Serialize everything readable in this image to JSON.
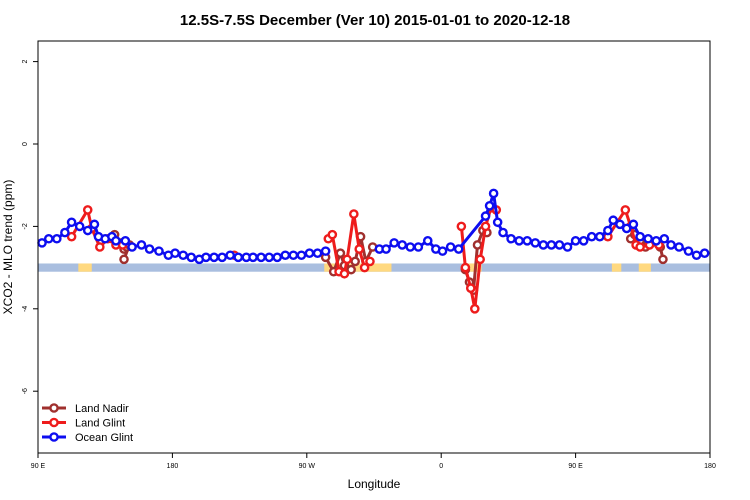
{
  "chart_data": {
    "type": "line",
    "title": "12.5S-7.5S December (Ver 10)   2015-01-01 to 2020-12-18",
    "xlabel": "Longitude",
    "ylabel": "XCO2 - MLO trend (ppm)",
    "xlim": [
      0,
      500
    ],
    "ylim": [
      -7.5,
      2.5
    ],
    "x_ticks": [
      {
        "value": 0,
        "label": "90 E"
      },
      {
        "value": 100,
        "label": "180"
      },
      {
        "value": 200,
        "label": "90 W"
      },
      {
        "value": 300,
        "label": "0"
      },
      {
        "value": 400,
        "label": "90 E"
      },
      {
        "value": 500,
        "label": "180"
      }
    ],
    "y_ticks": [
      {
        "value": 2,
        "label": "2"
      },
      {
        "value": 0,
        "label": "0"
      },
      {
        "value": -2,
        "label": "-2"
      },
      {
        "value": -4,
        "label": "-4"
      },
      {
        "value": -6,
        "label": "-6"
      }
    ],
    "grid": false,
    "legend_position": "bottom-left",
    "land_band": {
      "y_range": [
        -3.1,
        -2.9
      ],
      "color": "#a9bedf",
      "land_color": "#ffd980",
      "land_x": [
        [
          30,
          40
        ],
        [
          213,
          263
        ],
        [
          318,
          330
        ],
        [
          427,
          434
        ],
        [
          447,
          456
        ]
      ]
    },
    "series": [
      {
        "name": "Land Nadir",
        "color": "#a0302e",
        "points": [
          [
            55,
            -2.3
          ],
          [
            57,
            -2.2
          ],
          [
            62,
            -2.4
          ],
          [
            64,
            -2.55
          ],
          [
            66,
            -2.5
          ],
          [
            68,
            -2.45
          ],
          [
            64,
            -2.8
          ],
          [
            214,
            -2.75
          ],
          [
            220,
            -3.1
          ],
          [
            225,
            -2.65
          ],
          [
            228,
            -2.95
          ],
          [
            233,
            -3.05
          ],
          [
            236,
            -2.85
          ],
          [
            240,
            -2.25
          ],
          [
            244,
            -2.85
          ],
          [
            249,
            -2.5
          ],
          [
            318,
            -3.05
          ],
          [
            321,
            -3.35
          ],
          [
            324,
            -3.55
          ],
          [
            327,
            -2.45
          ],
          [
            331,
            -2.1
          ],
          [
            334,
            -2.15
          ],
          [
            441,
            -2.3
          ],
          [
            444,
            -2.2
          ],
          [
            448,
            -2.35
          ],
          [
            452,
            -2.5
          ],
          [
            454,
            -2.4
          ],
          [
            463,
            -2.5
          ],
          [
            465,
            -2.8
          ]
        ]
      },
      {
        "name": "Land Glint",
        "color": "#ee1c1c",
        "points": [
          [
            25,
            -2.25
          ],
          [
            37,
            -1.6
          ],
          [
            40,
            -2.05
          ],
          [
            46,
            -2.5
          ],
          [
            52,
            -2.3
          ],
          [
            58,
            -2.45
          ],
          [
            63,
            -2.45
          ],
          [
            146,
            -2.7
          ],
          [
            216,
            -2.3
          ],
          [
            219,
            -2.2
          ],
          [
            224,
            -3.1
          ],
          [
            228,
            -3.15
          ],
          [
            230,
            -2.8
          ],
          [
            235,
            -1.7
          ],
          [
            239,
            -2.55
          ],
          [
            243,
            -3.0
          ],
          [
            247,
            -2.85
          ],
          [
            315,
            -2.0
          ],
          [
            318,
            -3.0
          ],
          [
            322,
            -3.5
          ],
          [
            325,
            -4.0
          ],
          [
            329,
            -2.8
          ],
          [
            333,
            -2.0
          ],
          [
            337,
            -1.55
          ],
          [
            341,
            -1.6
          ],
          [
            424,
            -2.25
          ],
          [
            437,
            -1.6
          ],
          [
            441,
            -2.0
          ],
          [
            445,
            -2.45
          ],
          [
            448,
            -2.5
          ],
          [
            455,
            -2.45
          ],
          [
            462,
            -2.45
          ]
        ]
      },
      {
        "name": "Ocean Glint",
        "color": "#0d0df0",
        "points": [
          [
            3,
            -2.4
          ],
          [
            8,
            -2.3
          ],
          [
            14,
            -2.3
          ],
          [
            20,
            -2.15
          ],
          [
            25,
            -1.9
          ],
          [
            31,
            -2.0
          ],
          [
            37,
            -2.1
          ],
          [
            42,
            -1.95
          ],
          [
            45,
            -2.25
          ],
          [
            50,
            -2.3
          ],
          [
            55,
            -2.25
          ],
          [
            58,
            -2.35
          ],
          [
            65,
            -2.35
          ],
          [
            70,
            -2.5
          ],
          [
            77,
            -2.45
          ],
          [
            83,
            -2.55
          ],
          [
            90,
            -2.6
          ],
          [
            97,
            -2.7
          ],
          [
            102,
            -2.65
          ],
          [
            108,
            -2.7
          ],
          [
            114,
            -2.75
          ],
          [
            120,
            -2.8
          ],
          [
            125,
            -2.75
          ],
          [
            131,
            -2.75
          ],
          [
            137,
            -2.75
          ],
          [
            143,
            -2.7
          ],
          [
            149,
            -2.75
          ],
          [
            155,
            -2.75
          ],
          [
            160,
            -2.75
          ],
          [
            166,
            -2.75
          ],
          [
            172,
            -2.75
          ],
          [
            178,
            -2.75
          ],
          [
            184,
            -2.7
          ],
          [
            190,
            -2.7
          ],
          [
            196,
            -2.7
          ],
          [
            202,
            -2.65
          ],
          [
            208,
            -2.65
          ],
          [
            214,
            -2.6
          ],
          [
            254,
            -2.55
          ],
          [
            259,
            -2.55
          ],
          [
            265,
            -2.4
          ],
          [
            271,
            -2.45
          ],
          [
            277,
            -2.5
          ],
          [
            283,
            -2.5
          ],
          [
            290,
            -2.35
          ],
          [
            296,
            -2.55
          ],
          [
            301,
            -2.6
          ],
          [
            307,
            -2.5
          ],
          [
            313,
            -2.55
          ],
          [
            333,
            -1.75
          ],
          [
            336,
            -1.5
          ],
          [
            339,
            -1.2
          ],
          [
            342,
            -1.9
          ],
          [
            346,
            -2.15
          ],
          [
            352,
            -2.3
          ],
          [
            358,
            -2.35
          ],
          [
            364,
            -2.35
          ],
          [
            370,
            -2.4
          ],
          [
            376,
            -2.45
          ],
          [
            382,
            -2.45
          ],
          [
            388,
            -2.45
          ],
          [
            394,
            -2.5
          ],
          [
            400,
            -2.35
          ],
          [
            406,
            -2.35
          ],
          [
            412,
            -2.25
          ],
          [
            418,
            -2.25
          ],
          [
            424,
            -2.1
          ],
          [
            428,
            -1.85
          ],
          [
            433,
            -1.95
          ],
          [
            438,
            -2.05
          ],
          [
            443,
            -1.95
          ],
          [
            448,
            -2.25
          ],
          [
            454,
            -2.3
          ],
          [
            460,
            -2.35
          ],
          [
            466,
            -2.3
          ],
          [
            471,
            -2.45
          ],
          [
            477,
            -2.5
          ],
          [
            484,
            -2.6
          ],
          [
            490,
            -2.7
          ],
          [
            496,
            -2.65
          ]
        ]
      }
    ]
  }
}
